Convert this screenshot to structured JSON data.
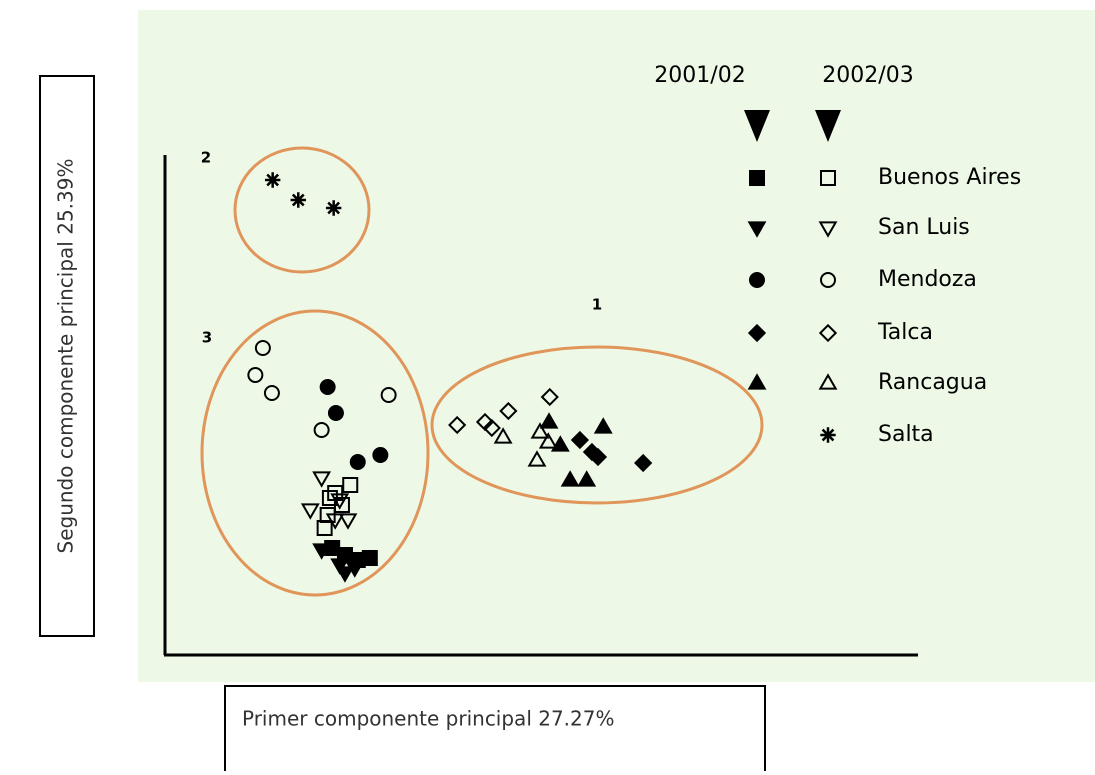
{
  "chart_data": {
    "type": "scatter",
    "xlabel": "Primer componente principal 27.27%",
    "ylabel": "Segundo componente principal  25.39%",
    "xlim": [
      0,
      100
    ],
    "ylim": [
      0,
      100
    ],
    "legend_columns": [
      "2001/02",
      "2002/03"
    ],
    "clusters": [
      "1",
      "2",
      "3"
    ],
    "series": [
      {
        "name": "Buenos Aires",
        "marker": "square",
        "seasons": [
          {
            "x": [
              22.2,
              23.9,
              25.6,
              27.2
            ],
            "y": [
              21.4,
              20,
              19,
              19.4
            ]
          },
          {
            "x": [
              24.6,
              22.6,
              23.5,
              21.6,
              21.2,
              21.9
            ],
            "y": [
              34,
              32.4,
              30,
              28,
              25.4,
              31.4
            ]
          }
        ]
      },
      {
        "name": "San Luis",
        "marker": "triangle-down",
        "seasons": [
          {
            "x": [
              20.8,
              23.2,
              23.9,
              25.2
            ],
            "y": [
              21,
              18,
              16.4,
              17.4
            ]
          },
          {
            "x": [
              20.8,
              19.3,
              23.2,
              24.3,
              22.6
            ],
            "y": [
              35.4,
              29,
              31,
              27,
              27
            ]
          }
        ]
      },
      {
        "name": "Mendoza",
        "marker": "circle",
        "seasons": [
          {
            "x": [
              21.6,
              22.7,
              25.6,
              28.6
            ],
            "y": [
              53.6,
              48.4,
              38.6,
              40
            ]
          },
          {
            "x": [
              13,
              12,
              14.2,
              20.8,
              29.7
            ],
            "y": [
              61.4,
              56,
              52.4,
              45,
              52
            ]
          }
        ]
      },
      {
        "name": "Talca",
        "marker": "diamond",
        "seasons": [
          {
            "x": [
              55.1,
              56.7,
              57.5,
              63.5
            ],
            "y": [
              43,
              40.6,
              39.6,
              38.4
            ]
          },
          {
            "x": [
              38.8,
              42.5,
              45.6,
              51.1,
              43.4
            ],
            "y": [
              46,
              46.6,
              48.8,
              51.6,
              45.4
            ]
          }
        ]
      },
      {
        "name": "Rancagua",
        "marker": "triangle-up",
        "seasons": [
          {
            "x": [
              51,
              58.2,
              53.8,
              56,
              52.5
            ],
            "y": [
              46.6,
              45.6,
              35,
              35,
              42
            ]
          },
          {
            "x": [
              44.9,
              49.8,
              50.9,
              49.4
            ],
            "y": [
              43.6,
              44.6,
              42.6,
              39
            ]
          }
        ]
      },
      {
        "name": "Salta",
        "marker": "asterisk",
        "seasons": [
          {
            "x": [],
            "y": []
          },
          {
            "x": [
              14.3,
              17.7,
              22.4
            ],
            "y": [
              95,
              91,
              89.4
            ]
          }
        ]
      }
    ]
  }
}
